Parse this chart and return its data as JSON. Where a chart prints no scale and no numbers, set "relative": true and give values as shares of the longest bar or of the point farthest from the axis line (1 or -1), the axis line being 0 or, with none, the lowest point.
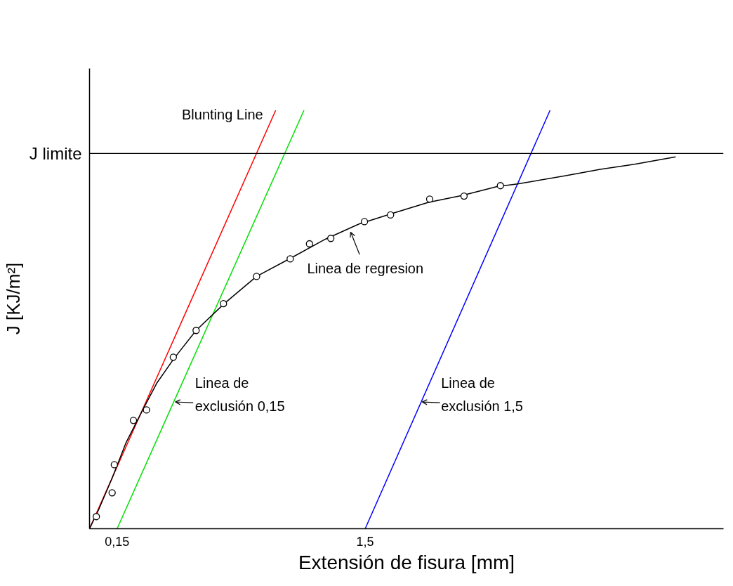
{
  "chart_data": {
    "type": "line",
    "relative": true,
    "xlabel": "Extensión de fisura [mm]",
    "ylabel": "J [KJ/m²]",
    "xlim": [
      0,
      3.45
    ],
    "xticks": [
      {
        "value": 0.15,
        "label": "0,15"
      },
      {
        "value": 1.5,
        "label": "1,5"
      }
    ],
    "grid": false,
    "series": [
      {
        "color": "#ff0000",
        "x": [
          0,
          1.013
        ],
        "values": [
          0,
          1.0
        ]
      },
      {
        "color": "#00e000",
        "x": [
          0.15,
          1.167
        ],
        "values": [
          0,
          1.0
        ]
      },
      {
        "color": "#0000ff",
        "x": [
          1.5,
          2.506
        ],
        "values": [
          0,
          1.0
        ]
      },
      {
        "color": "#000000",
        "x": [
          0,
          0.049,
          0.123,
          0.198,
          0.292,
          0.366,
          0.46,
          0.58,
          0.733,
          0.909,
          1.096,
          1.283,
          1.47,
          1.657,
          1.844,
          2.031,
          2.218,
          2.33,
          2.592,
          2.779,
          2.966,
          3.19
        ],
        "values": [
          0,
          0.045,
          0.121,
          0.205,
          0.286,
          0.348,
          0.407,
          0.474,
          0.538,
          0.603,
          0.647,
          0.692,
          0.729,
          0.755,
          0.78,
          0.797,
          0.818,
          0.824,
          0.844,
          0.859,
          0.871,
          0.889
        ]
      },
      {
        "type": "scatter",
        "marker": "circle",
        "color": "#000000",
        "x": [
          0.037,
          0.123,
          0.135,
          0.239,
          0.31,
          0.456,
          0.58,
          0.729,
          0.909,
          1.092,
          1.197,
          1.313,
          1.496,
          1.638,
          1.851,
          2.038,
          2.236
        ],
        "values": [
          0.029,
          0.086,
          0.153,
          0.259,
          0.284,
          0.41,
          0.474,
          0.538,
          0.603,
          0.645,
          0.681,
          0.694,
          0.734,
          0.75,
          0.788,
          0.795,
          0.82
        ]
      }
    ],
    "ref_lines": [
      {
        "axis": "y",
        "value": 0.897,
        "label": "J limite",
        "color": "#000000"
      }
    ],
    "annotations": [
      {
        "text": "Blunting Line",
        "x": 1.013,
        "y": 1.0
      },
      {
        "text": "Linea de regresion",
        "x": 1.421,
        "y": 0.709
      },
      {
        "text": "Linea de exclusión 0,15",
        "x": 0.467,
        "y": 0.303
      },
      {
        "text": "Linea de exclusión 1,5",
        "x": 1.81,
        "y": 0.303
      }
    ]
  }
}
